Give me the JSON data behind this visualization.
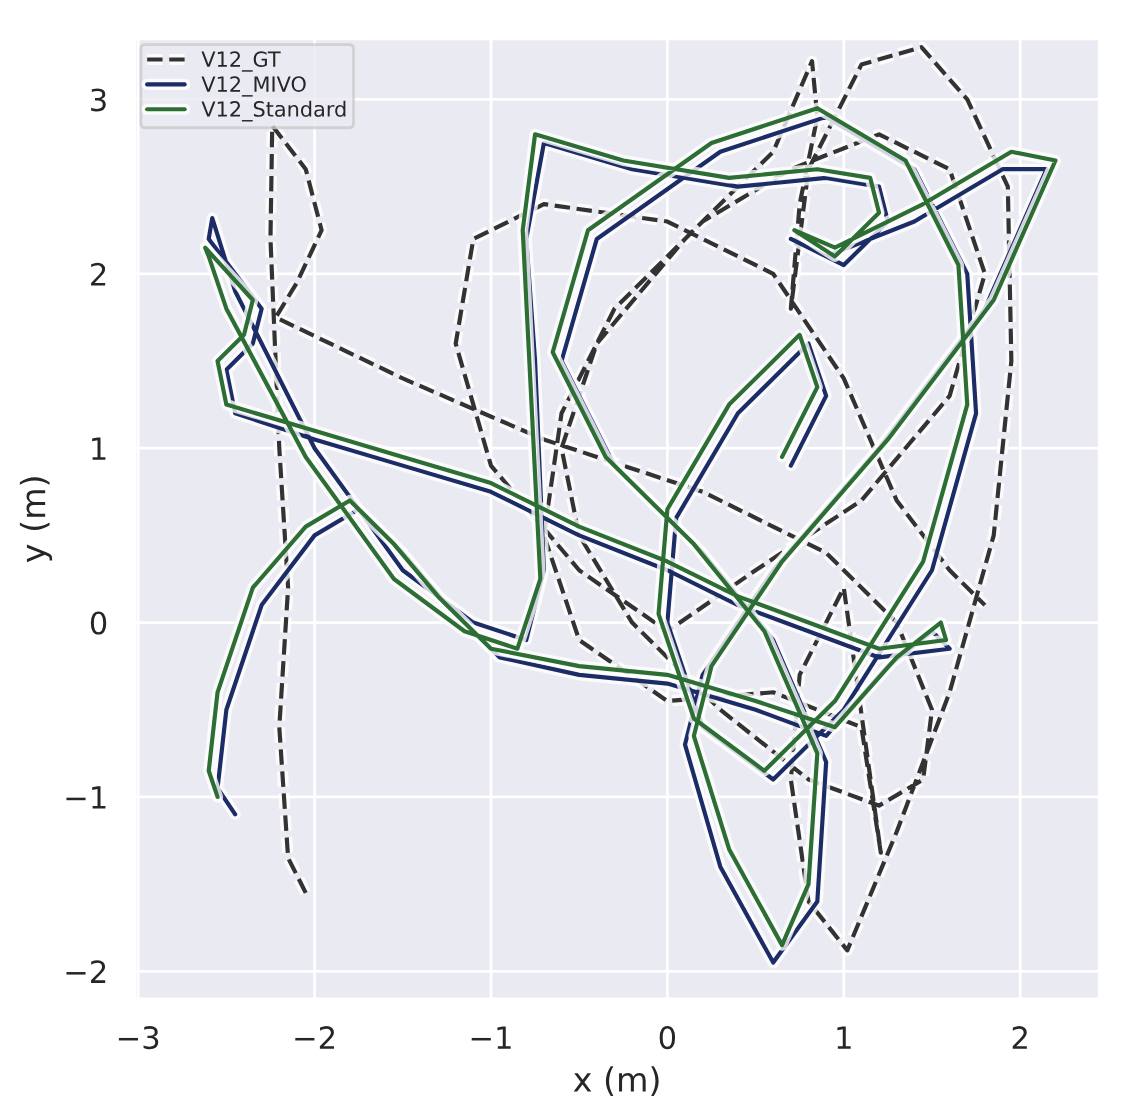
{
  "chart_data": {
    "type": "line",
    "xlabel": "x (m)",
    "ylabel": "y (m)",
    "xlim": [
      -3.02,
      2.45
    ],
    "ylim": [
      -2.16,
      3.35
    ],
    "xticks": [
      -3,
      -2,
      -1,
      0,
      1,
      2
    ],
    "yticks": [
      -2,
      -1,
      0,
      1,
      2,
      3
    ],
    "grid": true,
    "legend": "top left",
    "marker": "none",
    "series": [
      {
        "name": "V12_GT",
        "color": "#333333",
        "line_style": "dashed",
        "x": [
          -2.05,
          -2.15,
          -2.2,
          -2.15,
          -2.2,
          -2.25,
          -2.24,
          -2.05,
          -1.96,
          -2.1,
          -2.22,
          -1.5,
          -0.7,
          0.2,
          0.9,
          1.3,
          1.5,
          1.45,
          1.2,
          0.8,
          0.3,
          -0.2,
          -0.5,
          -0.6,
          -0.4,
          0.1,
          0.6,
          0.82,
          0.85,
          0.75,
          0.7,
          0.8,
          1.1,
          1.44,
          1.7,
          1.93,
          1.95,
          1.85,
          1.6,
          1.3,
          1.02,
          0.8,
          0.7,
          0.75,
          1.0,
          1.21,
          1.1,
          0.6,
          0.0,
          -0.5,
          -0.7,
          -0.6,
          -0.3,
          0.2,
          0.7,
          1.2,
          1.6,
          1.8,
          1.6,
          1.1,
          0.5,
          0.0,
          -0.5,
          -1.0,
          -1.2,
          -1.1,
          -0.7,
          0.0,
          0.6,
          1.0,
          1.3,
          1.6,
          1.8
        ],
        "values": [
          -1.55,
          -1.35,
          -0.6,
          0.2,
          1.0,
          2.2,
          2.85,
          2.6,
          2.25,
          1.95,
          1.75,
          1.4,
          1.05,
          0.75,
          0.4,
          0.0,
          -0.5,
          -0.9,
          -1.05,
          -0.9,
          -0.5,
          0.0,
          0.5,
          1.0,
          1.6,
          2.2,
          2.7,
          3.22,
          2.9,
          2.4,
          1.8,
          2.6,
          3.2,
          3.3,
          3.0,
          2.5,
          1.5,
          0.5,
          -0.4,
          -1.2,
          -1.88,
          -1.6,
          -0.9,
          -0.3,
          0.2,
          -1.32,
          -0.6,
          -0.4,
          -0.45,
          -0.1,
          0.5,
          1.2,
          1.8,
          2.3,
          2.6,
          2.8,
          2.6,
          2.0,
          1.3,
          0.7,
          0.3,
          -0.05,
          0.3,
          0.9,
          1.6,
          2.2,
          2.4,
          2.3,
          2.0,
          1.4,
          0.7,
          0.3,
          0.1
        ]
      },
      {
        "name": "V12_MIVO",
        "color": "#1c2c66",
        "x": [
          -2.45,
          -2.55,
          -2.5,
          -2.3,
          -2.0,
          -1.75,
          -1.5,
          -1.25,
          -0.95,
          -0.5,
          0.0,
          0.5,
          0.9,
          1.25,
          1.5,
          1.6,
          1.2,
          0.8,
          0.4,
          0.0,
          -0.5,
          -1.0,
          -1.5,
          -2.0,
          -2.45,
          -2.5,
          -2.35,
          -2.3,
          -2.6,
          -2.58,
          -2.45,
          -2.0,
          -1.5,
          -1.1,
          -0.8,
          -0.7,
          -0.75,
          -0.8,
          -0.7,
          -0.2,
          0.4,
          0.9,
          1.2,
          1.25,
          1.0,
          0.7,
          0.9,
          1.4,
          1.9,
          2.15,
          1.8,
          1.2,
          0.6,
          0.2,
          0.1,
          0.3,
          0.6,
          0.85,
          0.9,
          0.6,
          0.2,
          -0.3,
          -0.6,
          -0.4,
          0.3,
          0.9,
          1.4,
          1.7,
          1.75,
          1.5,
          1.0,
          0.6,
          0.2,
          0.0,
          0.05,
          0.4,
          0.8,
          0.9,
          0.7
        ],
        "values": [
          -1.1,
          -0.95,
          -0.5,
          0.1,
          0.5,
          0.65,
          0.4,
          0.1,
          -0.2,
          -0.3,
          -0.35,
          -0.5,
          -0.65,
          -0.25,
          -0.05,
          -0.15,
          -0.2,
          -0.05,
          0.1,
          0.3,
          0.5,
          0.75,
          0.9,
          1.05,
          1.2,
          1.45,
          1.6,
          1.8,
          2.2,
          2.32,
          1.9,
          1.0,
          0.3,
          0.0,
          -0.1,
          0.3,
          1.5,
          2.2,
          2.75,
          2.6,
          2.5,
          2.55,
          2.5,
          2.3,
          2.05,
          2.2,
          2.1,
          2.3,
          2.6,
          2.6,
          1.8,
          1.0,
          0.3,
          -0.3,
          -0.7,
          -1.4,
          -1.95,
          -1.6,
          -0.8,
          -0.1,
          0.4,
          0.9,
          1.5,
          2.2,
          2.7,
          2.9,
          2.6,
          2.0,
          1.2,
          0.3,
          -0.5,
          -0.9,
          -0.6,
          0.0,
          0.6,
          1.2,
          1.6,
          1.3,
          0.9
        ]
      },
      {
        "name": "V12_Standard",
        "color": "#2d6e34",
        "x": [
          -2.55,
          -2.6,
          -2.55,
          -2.35,
          -2.05,
          -1.8,
          -1.55,
          -1.3,
          -1.0,
          -0.5,
          0.0,
          0.5,
          0.95,
          1.3,
          1.55,
          1.58,
          1.2,
          0.8,
          0.4,
          0.0,
          -0.5,
          -1.0,
          -1.5,
          -2.0,
          -2.5,
          -2.55,
          -2.4,
          -2.35,
          -2.62,
          -2.6,
          -2.5,
          -2.05,
          -1.55,
          -1.15,
          -0.85,
          -0.72,
          -0.78,
          -0.82,
          -0.75,
          -0.25,
          0.35,
          0.85,
          1.15,
          1.2,
          0.95,
          0.72,
          0.95,
          1.45,
          1.95,
          2.2,
          1.85,
          1.25,
          0.65,
          0.25,
          0.15,
          0.35,
          0.65,
          0.8,
          0.85,
          0.55,
          0.15,
          -0.35,
          -0.65,
          -0.45,
          0.25,
          0.85,
          1.35,
          1.65,
          1.7,
          1.45,
          0.95,
          0.55,
          0.15,
          -0.05,
          0.0,
          0.35,
          0.75,
          0.85,
          0.65
        ],
        "values": [
          -1.0,
          -0.85,
          -0.4,
          0.2,
          0.55,
          0.7,
          0.45,
          0.15,
          -0.15,
          -0.25,
          -0.3,
          -0.45,
          -0.6,
          -0.2,
          0.0,
          -0.1,
          -0.15,
          0.0,
          0.15,
          0.35,
          0.55,
          0.8,
          0.95,
          1.1,
          1.25,
          1.5,
          1.65,
          1.85,
          2.15,
          2.1,
          1.8,
          0.95,
          0.25,
          -0.05,
          -0.15,
          0.25,
          1.45,
          2.25,
          2.8,
          2.65,
          2.55,
          2.6,
          2.55,
          2.35,
          2.1,
          2.25,
          2.15,
          2.4,
          2.7,
          2.65,
          1.85,
          1.05,
          0.35,
          -0.25,
          -0.65,
          -1.3,
          -1.85,
          -1.5,
          -0.75,
          -0.05,
          0.45,
          0.95,
          1.55,
          2.25,
          2.75,
          2.95,
          2.65,
          2.05,
          1.25,
          0.35,
          -0.45,
          -0.85,
          -0.55,
          0.05,
          0.65,
          1.25,
          1.65,
          1.35,
          0.95
        ]
      }
    ]
  }
}
